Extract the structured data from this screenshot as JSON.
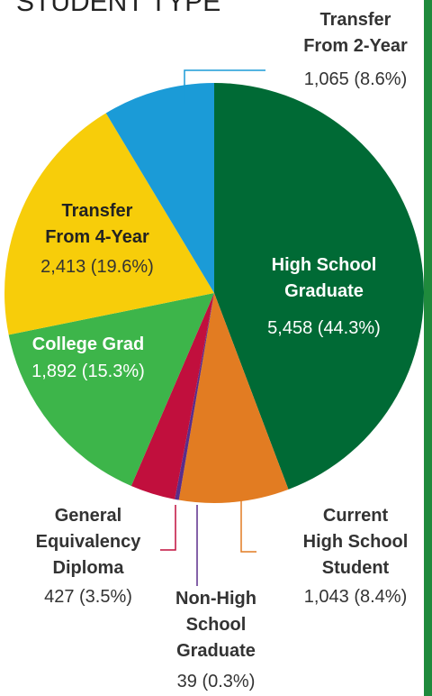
{
  "chart_data": {
    "type": "pie",
    "title": "STUDENT TYPE",
    "categories": [
      [
        "High School",
        "Graduate"
      ],
      [
        "Current",
        "High School",
        "Student"
      ],
      [
        "Non-High",
        "School",
        "Graduate"
      ],
      [
        "General",
        "Equivalency",
        "Diploma"
      ],
      [
        "College Grad"
      ],
      [
        "Transfer",
        "From 4-Year"
      ],
      [
        "Transfer",
        "From 2-Year"
      ]
    ],
    "values": [
      5458,
      1043,
      39,
      427,
      1892,
      2413,
      1065
    ],
    "value_labels": [
      "5,458 (44.3%)",
      "1,043 (8.4%)",
      "39 (0.3%)",
      "427 (3.5%)",
      "1,892 (15.3%)",
      "2,413 (19.6%)",
      "1,065 (8.6%)"
    ],
    "colors": [
      "#006a35",
      "#e27c22",
      "#5a2d8a",
      "#c10f3d",
      "#3db54a",
      "#f7cd0a",
      "#1b9bd7"
    ]
  }
}
